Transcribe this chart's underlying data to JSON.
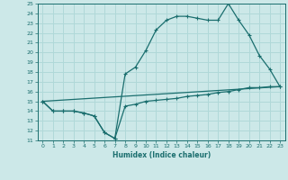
{
  "xlabel": "Humidex (Indice chaleur)",
  "bg_color": "#cce8e8",
  "line_color": "#1a6e6e",
  "grid_color": "#b0d8d8",
  "xlim": [
    -0.5,
    23.5
  ],
  "ylim": [
    11,
    25
  ],
  "xticks": [
    0,
    1,
    2,
    3,
    4,
    5,
    6,
    7,
    8,
    9,
    10,
    11,
    12,
    13,
    14,
    15,
    16,
    17,
    18,
    19,
    20,
    21,
    22,
    23
  ],
  "yticks": [
    11,
    12,
    13,
    14,
    15,
    16,
    17,
    18,
    19,
    20,
    21,
    22,
    23,
    24,
    25
  ],
  "line1_x": [
    0,
    1,
    2,
    3,
    4,
    5,
    6,
    7,
    8,
    9,
    10,
    11,
    12,
    13,
    14,
    15,
    16,
    17,
    18,
    19,
    20,
    21,
    22,
    23
  ],
  "line1_y": [
    15,
    14,
    14,
    14,
    13.8,
    13.5,
    11.8,
    11.2,
    14.5,
    14.7,
    15.0,
    15.1,
    15.2,
    15.3,
    15.5,
    15.6,
    15.7,
    15.9,
    16.0,
    16.2,
    16.4,
    16.4,
    16.5,
    16.5
  ],
  "line2_x": [
    0,
    1,
    2,
    3,
    4,
    5,
    6,
    7,
    8,
    9,
    10,
    11,
    12,
    13,
    14,
    15,
    16,
    17,
    18,
    19,
    20,
    21,
    22,
    23
  ],
  "line2_y": [
    15,
    14,
    14,
    14,
    13.8,
    13.5,
    11.8,
    11.2,
    17.8,
    18.5,
    20.2,
    22.3,
    23.3,
    23.7,
    23.7,
    23.5,
    23.3,
    23.3,
    25.0,
    23.3,
    21.8,
    19.7,
    18.3,
    16.5
  ],
  "line3_x": [
    0,
    23
  ],
  "line3_y": [
    15,
    16.5
  ]
}
